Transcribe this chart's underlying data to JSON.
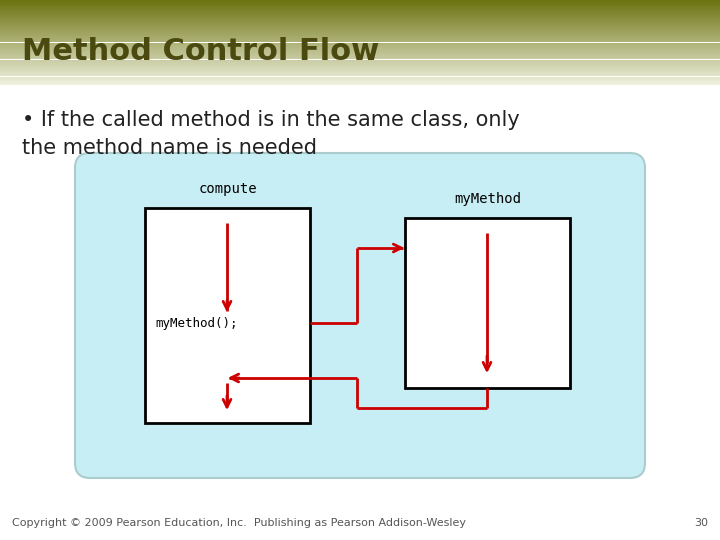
{
  "title": "Method Control Flow",
  "title_color": "#4a4a10",
  "title_fontsize": 22,
  "bullet_text": "If the called method is in the same class, only\nthe method name is needed",
  "bullet_fontsize": 15,
  "bg_color": "#ffffff",
  "diagram_bg": "#c8eef5",
  "arrow_color": "#cc0000",
  "compute_label": "compute",
  "mymethod_label": "myMethod",
  "call_label": "myMethod();",
  "footer_text": "Copyright © 2009 Pearson Education, Inc.  Publishing as Pearson Addison-Wesley",
  "footer_page": "30",
  "footer_fontsize": 8
}
